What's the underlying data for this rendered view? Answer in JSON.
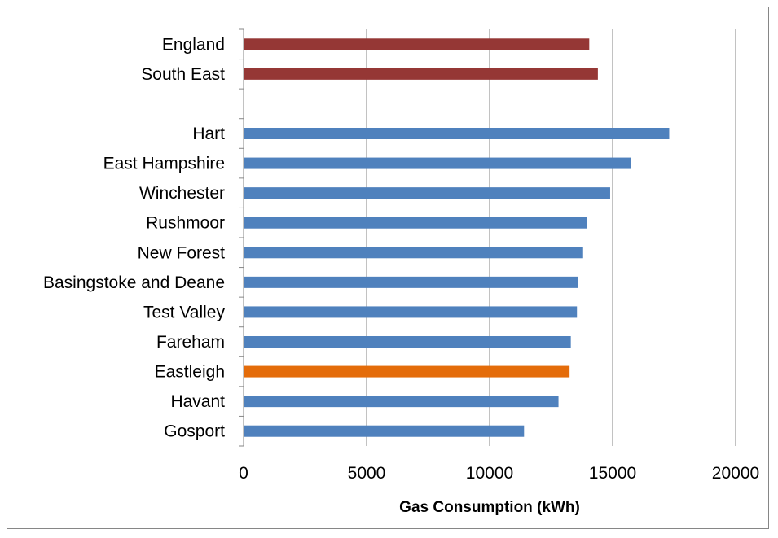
{
  "chart_data": {
    "type": "bar",
    "orientation": "horizontal",
    "xlabel": "Gas Consumption (kWh)",
    "ylabel": "",
    "title": "",
    "xlim": [
      0,
      20000
    ],
    "xticks": [
      "0",
      "5000",
      "10000",
      "15000",
      "20000"
    ],
    "grid": "vertical major gridlines",
    "legend": "none",
    "categories": [
      "England",
      "South East",
      "",
      "Hart",
      "East Hampshire",
      "Winchester",
      "Rushmoor",
      "New Forest",
      "Basingstoke and Deane",
      "Test Valley",
      "Fareham",
      "Eastleigh",
      "Havant",
      "Gosport"
    ],
    "values": [
      14050,
      14400,
      null,
      17300,
      15750,
      14900,
      13950,
      13800,
      13600,
      13550,
      13300,
      13250,
      12800,
      11400
    ],
    "bar_colors": [
      "#953735",
      "#953735",
      null,
      "#4f81bd",
      "#4f81bd",
      "#4f81bd",
      "#4f81bd",
      "#4f81bd",
      "#4f81bd",
      "#4f81bd",
      "#4f81bd",
      "#e46c0a",
      "#4f81bd",
      "#4f81bd"
    ],
    "gridline_color": "#868686"
  }
}
